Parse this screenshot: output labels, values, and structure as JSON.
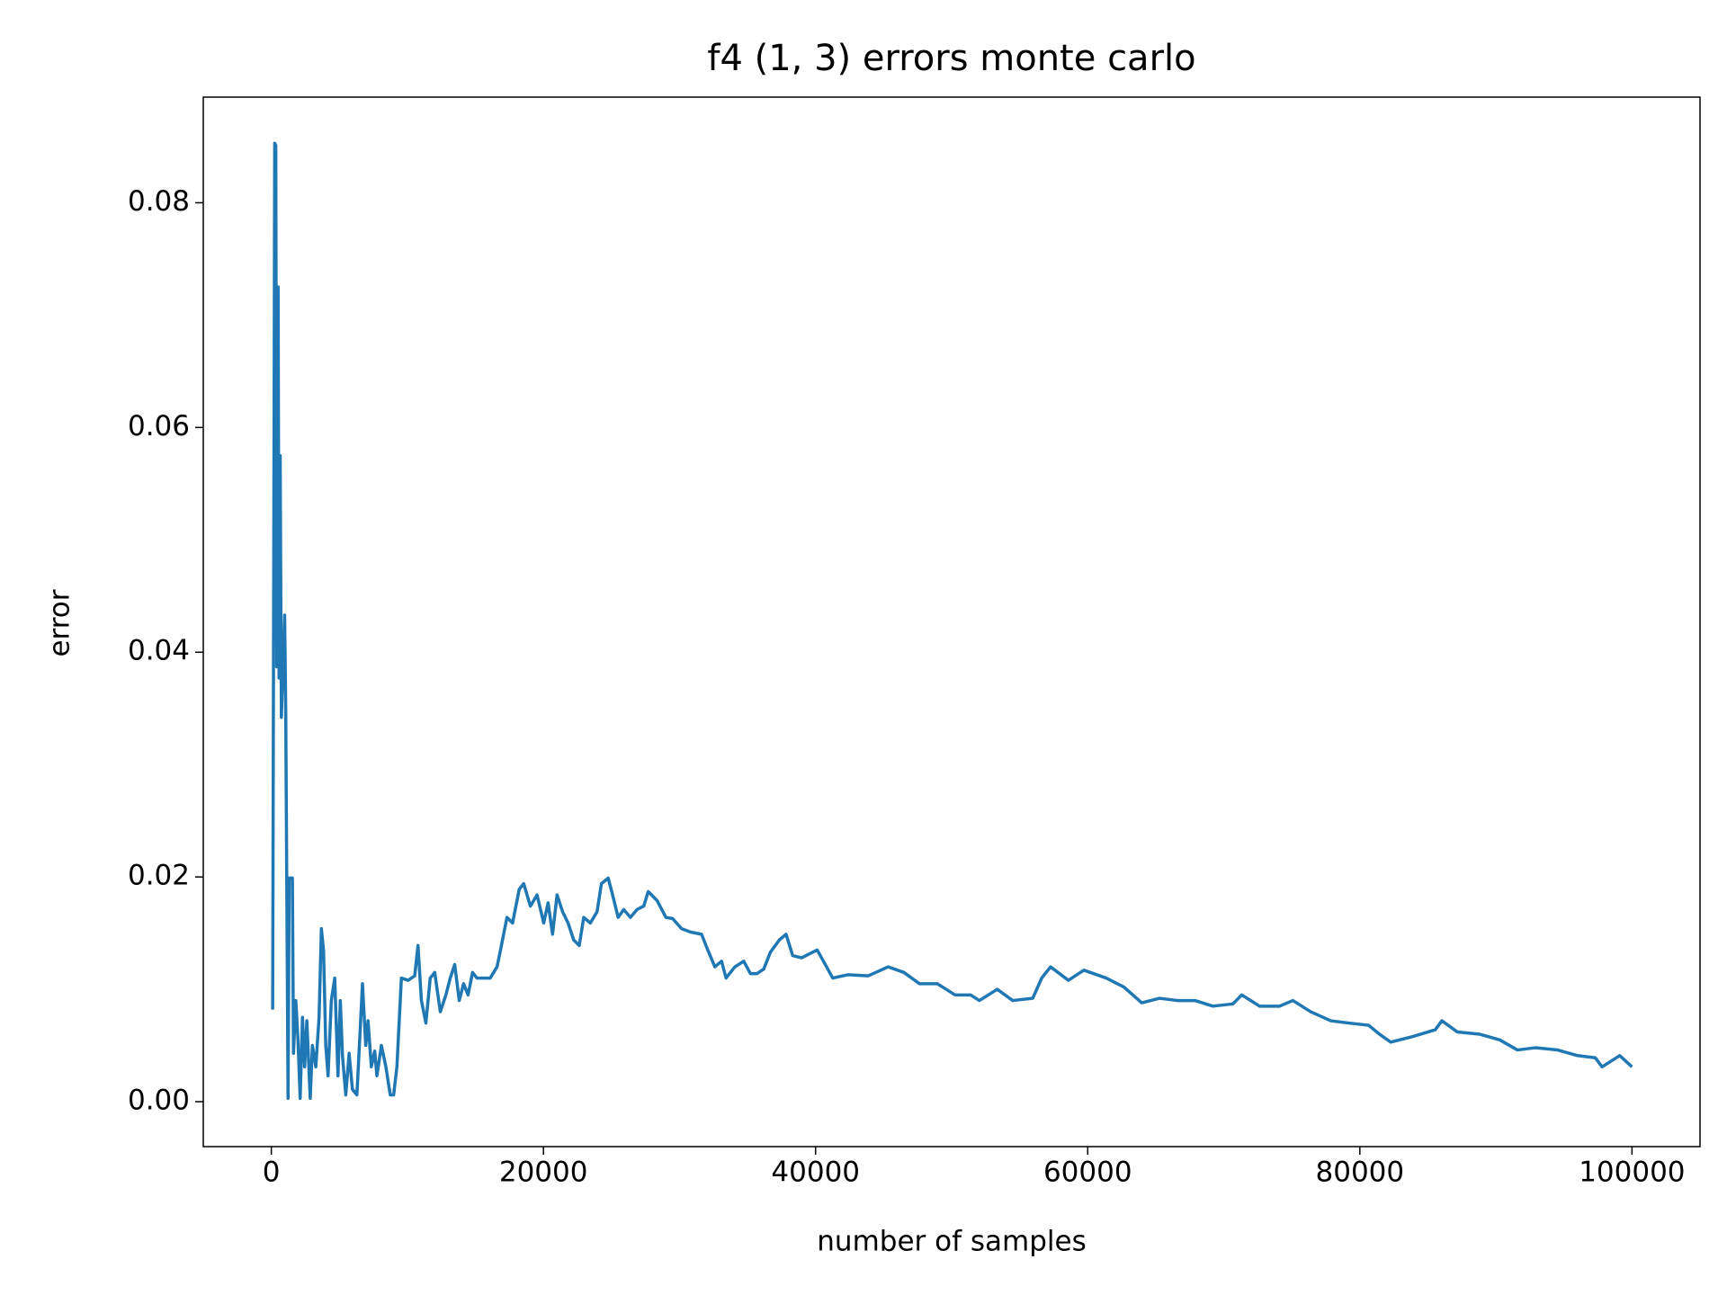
{
  "chart_data": {
    "type": "line",
    "title": "f4 (1, 3) errors monte carlo",
    "x_label": "number of samples",
    "y_label": "error",
    "x": [
      100,
      250,
      330,
      400,
      500,
      570,
      650,
      740,
      980,
      1060,
      1230,
      1310,
      1550,
      1630,
      1800,
      1960,
      2120,
      2290,
      2450,
      2610,
      2860,
      3020,
      3270,
      3510,
      3680,
      3840,
      4000,
      4170,
      4410,
      4660,
      4900,
      5070,
      5230,
      5470,
      5720,
      5960,
      6290,
      6700,
      6940,
      7110,
      7350,
      7600,
      7760,
      8090,
      8420,
      8740,
      8990,
      9230,
      9560,
      10050,
      10540,
      10780,
      11030,
      11360,
      11680,
      12010,
      12420,
      12830,
      13150,
      13480,
      13810,
      14130,
      14460,
      14790,
      15110,
      16090,
      16590,
      16910,
      17320,
      17730,
      18220,
      18550,
      19040,
      19530,
      20020,
      20340,
      20670,
      21000,
      21410,
      21810,
      22220,
      22630,
      22960,
      23450,
      23940,
      24260,
      24760,
      25080,
      25490,
      25900,
      26390,
      26880,
      27370,
      27700,
      28350,
      29000,
      29490,
      30150,
      30800,
      31620,
      32110,
      32600,
      33090,
      33420,
      34070,
      34720,
      35210,
      35700,
      36190,
      36680,
      37340,
      37830,
      38320,
      38970,
      40120,
      41260,
      42400,
      43870,
      45340,
      46490,
      47630,
      48940,
      50250,
      51390,
      52040,
      53350,
      54490,
      55960,
      56620,
      57270,
      58580,
      59720,
      61360,
      62660,
      63970,
      65280,
      66590,
      67890,
      69200,
      70670,
      71320,
      72630,
      74100,
      75080,
      76390,
      77860,
      79170,
      80640,
      81450,
      82270,
      83900,
      85540,
      86030,
      87170,
      88810,
      90280,
      91580,
      92890,
      94530,
      96000,
      97310,
      97800,
      99100,
      100000
    ],
    "series": [
      {
        "name": "error",
        "color": "#1f77b4",
        "values": [
          0.0082,
          0.0853,
          0.0851,
          0.0387,
          0.0725,
          0.0377,
          0.0575,
          0.0342,
          0.0433,
          0.0347,
          0.0003,
          0.0199,
          0.0199,
          0.0043,
          0.009,
          0.0055,
          0.0003,
          0.0075,
          0.0031,
          0.0072,
          0.0003,
          0.005,
          0.0031,
          0.0075,
          0.0154,
          0.0134,
          0.005,
          0.0023,
          0.009,
          0.011,
          0.0023,
          0.009,
          0.0041,
          0.0006,
          0.0043,
          0.0011,
          0.0006,
          0.0105,
          0.005,
          0.0072,
          0.0031,
          0.0045,
          0.0023,
          0.005,
          0.0031,
          0.0006,
          0.0006,
          0.0031,
          0.011,
          0.0108,
          0.0112,
          0.0139,
          0.009,
          0.007,
          0.011,
          0.0115,
          0.008,
          0.0095,
          0.011,
          0.0122,
          0.009,
          0.0105,
          0.0095,
          0.0115,
          0.011,
          0.011,
          0.012,
          0.0139,
          0.0164,
          0.0159,
          0.0189,
          0.0194,
          0.0174,
          0.0184,
          0.0159,
          0.0177,
          0.0149,
          0.0184,
          0.0169,
          0.0159,
          0.0144,
          0.0139,
          0.0164,
          0.0159,
          0.0169,
          0.0194,
          0.0199,
          0.0184,
          0.0164,
          0.0171,
          0.0164,
          0.0171,
          0.0174,
          0.0187,
          0.0179,
          0.0164,
          0.0163,
          0.0154,
          0.0151,
          0.0149,
          0.0134,
          0.012,
          0.0125,
          0.011,
          0.012,
          0.0125,
          0.0114,
          0.0114,
          0.0118,
          0.0133,
          0.0144,
          0.0149,
          0.013,
          0.0128,
          0.0135,
          0.011,
          0.0113,
          0.0112,
          0.012,
          0.0115,
          0.0105,
          0.0105,
          0.0095,
          0.0095,
          0.009,
          0.01,
          0.009,
          0.0092,
          0.011,
          0.012,
          0.0108,
          0.0117,
          0.011,
          0.0102,
          0.0088,
          0.0092,
          0.009,
          0.009,
          0.0085,
          0.0087,
          0.0095,
          0.0085,
          0.0085,
          0.009,
          0.008,
          0.0072,
          0.007,
          0.0068,
          0.006,
          0.0053,
          0.0058,
          0.0064,
          0.0072,
          0.0062,
          0.006,
          0.0055,
          0.0046,
          0.0048,
          0.0046,
          0.0041,
          0.0039,
          0.0031,
          0.0041,
          0.0031
        ]
      }
    ],
    "xlim": [
      -5000,
      105000
    ],
    "ylim": [
      -0.004,
      0.0894
    ],
    "xticks": [
      0,
      20000,
      40000,
      60000,
      80000,
      100000
    ],
    "yticks": [
      {
        "value": 0,
        "label": "0.00"
      },
      {
        "value": 0.02,
        "label": "0.02"
      },
      {
        "value": 0.04,
        "label": "0.04"
      },
      {
        "value": 0.06,
        "label": "0.06"
      },
      {
        "value": 0.08,
        "label": "0.08"
      }
    ]
  }
}
